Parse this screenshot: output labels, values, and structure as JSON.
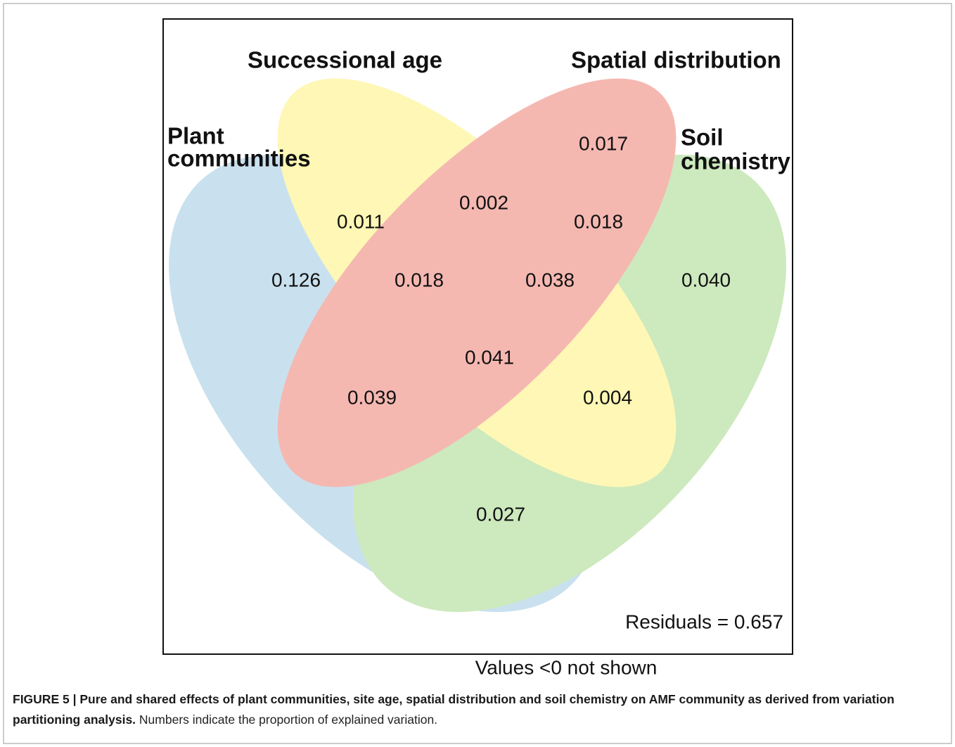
{
  "figure": {
    "sets": [
      {
        "label": [
          "Plant",
          "communities"
        ]
      },
      {
        "label": [
          "Successional age"
        ]
      },
      {
        "label": [
          "Spatial distribution"
        ]
      },
      {
        "label": [
          "Soil",
          "chemistry"
        ]
      }
    ],
    "regions": [
      "0.017",
      "0.002",
      "0.011",
      "0.018",
      "0.126",
      "0.018",
      "0.038",
      "0.040",
      "0.041",
      "0.039",
      "0.004",
      "0.027"
    ],
    "residuals": "Residuals = 0.657",
    "note": "Values <0 not shown",
    "caption": {
      "bold": "FIGURE 5 | Pure and shared effects of plant communities, site age, spatial distribution and soil chemistry on AMF community as derived from variation partitioning analysis.",
      "text": "Numbers indicate the proportion of explained variation."
    }
  }
}
